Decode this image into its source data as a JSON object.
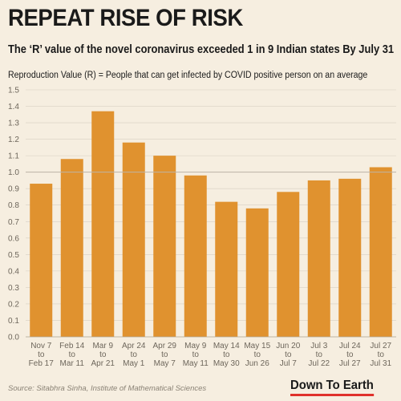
{
  "header": {
    "title": "REPEAT RISE OF RISK",
    "subtitle": "The ‘R’ value of the novel coronavirus exceeded 1 in 9 Indian states By July 31",
    "note": "Reproduction Value (R) = People that can get infected by COVID positive person on an average"
  },
  "footer": {
    "source": "Source: Sitabhra Sinha, Institute of Mathematical Sciences",
    "logo": "Down To Earth"
  },
  "colors": {
    "bar": "#e0922f",
    "background": "#f6eee0",
    "grid": "#d7cfc2",
    "reference_line": "#bdb4a6",
    "logo_underline": "#e0312b"
  },
  "chart_data": {
    "type": "bar",
    "categories": [
      [
        "Nov 7",
        "to",
        "Feb 17"
      ],
      [
        "Feb 14",
        "to",
        "Mar 11"
      ],
      [
        "Mar 9",
        "to",
        "Apr 21"
      ],
      [
        "Apr 24",
        "to",
        "May 1"
      ],
      [
        "Apr 29",
        "to",
        "May 7"
      ],
      [
        "May 9",
        "to",
        "May 11"
      ],
      [
        "May 14",
        "to",
        "May 30"
      ],
      [
        "May 15",
        "to",
        "Jun 26"
      ],
      [
        "Jun 20",
        "to",
        "Jul 7"
      ],
      [
        "Jul 3",
        "to",
        "Jul 22"
      ],
      [
        "Jul 24",
        "to",
        "Jul 27"
      ],
      [
        "Jul 27",
        "to",
        "Jul 31"
      ]
    ],
    "values": [
      0.93,
      1.08,
      1.37,
      1.18,
      1.1,
      0.98,
      0.82,
      0.78,
      0.88,
      0.95,
      0.96,
      1.03
    ],
    "ylim": [
      0,
      1.5
    ],
    "yticks": [
      "0.0",
      "0.1",
      "0.2",
      "0.3",
      "0.4",
      "0.5",
      "0.6",
      "0.7",
      "0.8",
      "0.9",
      "1.0",
      "1.1",
      "1.2",
      "1.3",
      "1.4",
      "1.5"
    ],
    "reference_value": 1.0,
    "grid": true,
    "xlabel": "",
    "ylabel": ""
  }
}
